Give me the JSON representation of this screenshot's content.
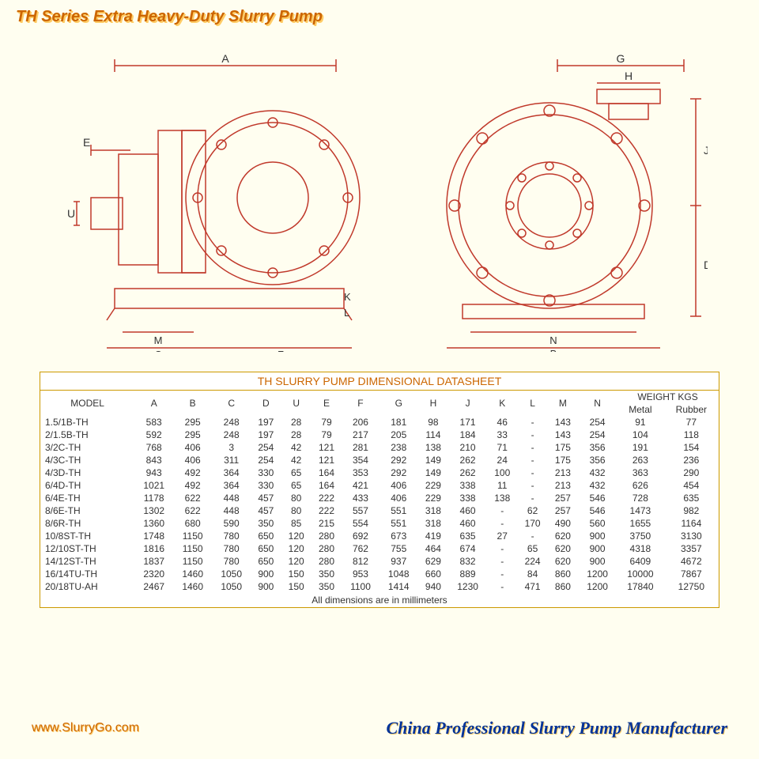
{
  "header": {
    "title": "TH Series Extra Heavy-Duty Slurry Pump"
  },
  "diagram": {
    "stroke_color": "#c0392b",
    "bg_color": "#fffef0",
    "labels_left": [
      "A",
      "E",
      "U",
      "K",
      "L",
      "M",
      "C",
      "F"
    ],
    "labels_right": [
      "G",
      "H",
      "J",
      "D",
      "N",
      "B"
    ]
  },
  "table": {
    "title": "TH SLURRY PUMP DIMENSIONAL DATASHEET",
    "columns": [
      "MODEL",
      "A",
      "B",
      "C",
      "D",
      "U",
      "E",
      "F",
      "G",
      "H",
      "J",
      "K",
      "L",
      "M",
      "N"
    ],
    "weight_header": "WEIGHT KGS",
    "weight_cols": [
      "Metal",
      "Rubber"
    ],
    "rows": [
      [
        "1.5/1B-TH",
        "583",
        "295",
        "248",
        "197",
        "28",
        "79",
        "206",
        "181",
        "98",
        "171",
        "46",
        "-",
        "143",
        "254",
        "91",
        "77"
      ],
      [
        "2/1.5B-TH",
        "592",
        "295",
        "248",
        "197",
        "28",
        "79",
        "217",
        "205",
        "114",
        "184",
        "33",
        "-",
        "143",
        "254",
        "104",
        "118"
      ],
      [
        "3/2C-TH",
        "768",
        "406",
        "3",
        "254",
        "42",
        "121",
        "281",
        "238",
        "138",
        "210",
        "71",
        "-",
        "175",
        "356",
        "191",
        "154"
      ],
      [
        "4/3C-TH",
        "843",
        "406",
        "311",
        "254",
        "42",
        "121",
        "354",
        "292",
        "149",
        "262",
        "24",
        "-",
        "175",
        "356",
        "263",
        "236"
      ],
      [
        "4/3D-TH",
        "943",
        "492",
        "364",
        "330",
        "65",
        "164",
        "353",
        "292",
        "149",
        "262",
        "100",
        "-",
        "213",
        "432",
        "363",
        "290"
      ],
      [
        "6/4D-TH",
        "1021",
        "492",
        "364",
        "330",
        "65",
        "164",
        "421",
        "406",
        "229",
        "338",
        "11",
        "-",
        "213",
        "432",
        "626",
        "454"
      ],
      [
        "6/4E-TH",
        "1178",
        "622",
        "448",
        "457",
        "80",
        "222",
        "433",
        "406",
        "229",
        "338",
        "138",
        "-",
        "257",
        "546",
        "728",
        "635"
      ],
      [
        "8/6E-TH",
        "1302",
        "622",
        "448",
        "457",
        "80",
        "222",
        "557",
        "551",
        "318",
        "460",
        "-",
        "62",
        "257",
        "546",
        "1473",
        "982"
      ],
      [
        "8/6R-TH",
        "1360",
        "680",
        "590",
        "350",
        "85",
        "215",
        "554",
        "551",
        "318",
        "460",
        "-",
        "170",
        "490",
        "560",
        "1655",
        "1164"
      ],
      [
        "10/8ST-TH",
        "1748",
        "1150",
        "780",
        "650",
        "120",
        "280",
        "692",
        "673",
        "419",
        "635",
        "27",
        "-",
        "620",
        "900",
        "3750",
        "3130"
      ],
      [
        "12/10ST-TH",
        "1816",
        "1150",
        "780",
        "650",
        "120",
        "280",
        "762",
        "755",
        "464",
        "674",
        "-",
        "65",
        "620",
        "900",
        "4318",
        "3357"
      ],
      [
        "14/12ST-TH",
        "1837",
        "1150",
        "780",
        "650",
        "120",
        "280",
        "812",
        "937",
        "629",
        "832",
        "-",
        "224",
        "620",
        "900",
        "6409",
        "4672"
      ],
      [
        "16/14TU-TH",
        "2320",
        "1460",
        "1050",
        "900",
        "150",
        "350",
        "953",
        "1048",
        "660",
        "889",
        "-",
        "84",
        "860",
        "1200",
        "10000",
        "7867"
      ],
      [
        "20/18TU-AH",
        "2467",
        "1460",
        "1050",
        "900",
        "150",
        "350",
        "1100",
        "1414",
        "940",
        "1230",
        "-",
        "471",
        "860",
        "1200",
        "17840",
        "12750"
      ]
    ],
    "footer": "All dimensions are in millimeters"
  },
  "footer": {
    "left": "www.SlurryGo.com",
    "right": "China Professional Slurry Pump Manufacturer"
  }
}
